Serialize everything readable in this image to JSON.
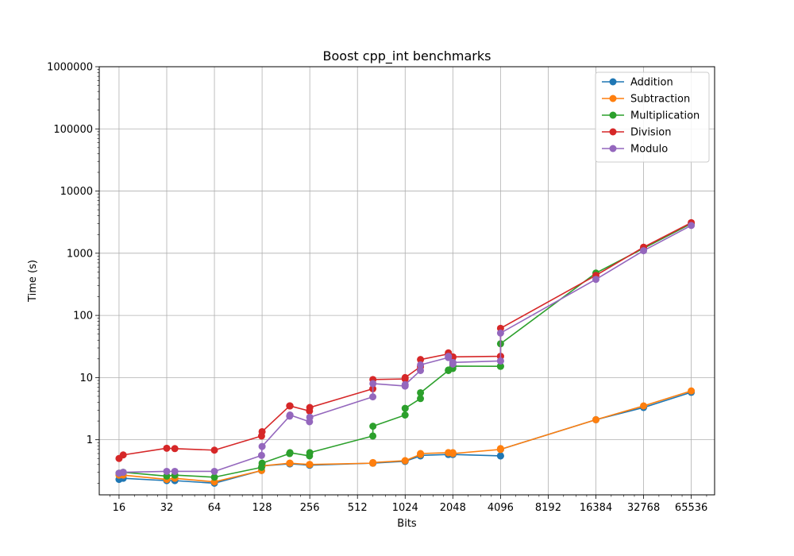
{
  "chart_data": {
    "type": "line",
    "title": "Boost cpp_int benchmarks",
    "xlabel": "Bits",
    "ylabel": "Time (s)",
    "x_scale": "log2",
    "y_scale": "log10",
    "xlim": [
      12,
      92000
    ],
    "ylim": [
      0.13,
      1000000
    ],
    "x_ticks": [
      16,
      32,
      64,
      128,
      256,
      512,
      1024,
      2048,
      4096,
      8192,
      16384,
      32768,
      65536
    ],
    "x_tick_labels": [
      "16",
      "32",
      "64",
      "128",
      "256",
      "512",
      "1024",
      "2048",
      "4096",
      "8192",
      "16384",
      "32768",
      "65536"
    ],
    "y_ticks": [
      1,
      10,
      100,
      1000,
      10000,
      100000,
      1000000
    ],
    "y_tick_labels": [
      "1",
      "10",
      "100",
      "1000",
      "10000",
      "100000",
      "1000000"
    ],
    "grid": true,
    "legend_position": "top-right",
    "x": [
      16,
      17,
      32,
      36,
      64,
      127,
      128,
      191,
      192,
      255,
      256,
      640,
      641,
      1023,
      1024,
      1279,
      1280,
      1919,
      1920,
      2047,
      2048,
      2049,
      4095,
      4096,
      4097,
      16384,
      32768,
      65536
    ],
    "series": [
      {
        "name": "Addition",
        "color": "#1f77b4",
        "x": [
          16,
          17,
          32,
          36,
          64,
          127,
          128,
          191,
          192,
          255,
          256,
          640,
          641,
          1023,
          1024,
          1279,
          1280,
          1919,
          1920,
          2047,
          2048,
          2049,
          4095,
          4096,
          4097,
          16384,
          32768,
          65536
        ],
        "values": [
          0.23,
          0.24,
          0.22,
          0.22,
          0.2,
          0.32,
          0.38,
          0.41,
          0.41,
          0.39,
          0.39,
          0.42,
          0.42,
          0.45,
          0.45,
          0.55,
          0.56,
          0.58,
          0.58,
          0.58,
          0.58,
          0.58,
          0.55,
          0.55,
          0.7,
          2.1,
          3.3,
          5.8
        ]
      },
      {
        "name": "Subtraction",
        "color": "#ff7f0e",
        "x": [
          16,
          17,
          32,
          36,
          64,
          127,
          128,
          191,
          192,
          255,
          256,
          640,
          641,
          1023,
          1024,
          1279,
          1280,
          1919,
          1920,
          2047,
          2048,
          2049,
          4095,
          4096,
          4097,
          16384,
          32768,
          65536
        ],
        "values": [
          0.27,
          0.27,
          0.23,
          0.24,
          0.21,
          0.32,
          0.38,
          0.42,
          0.42,
          0.4,
          0.4,
          0.42,
          0.43,
          0.46,
          0.46,
          0.58,
          0.6,
          0.62,
          0.62,
          0.61,
          0.62,
          0.6,
          0.7,
          0.72,
          0.7,
          2.1,
          3.5,
          6.1
        ]
      },
      {
        "name": "Multiplication",
        "color": "#2ca02c",
        "x": [
          16,
          17,
          32,
          36,
          64,
          127,
          128,
          191,
          192,
          255,
          256,
          640,
          641,
          1023,
          1024,
          1279,
          1280,
          1919,
          1920,
          2047,
          2048,
          2049,
          4095,
          4096,
          4097,
          16384,
          32768,
          65536
        ],
        "values": [
          0.29,
          0.3,
          0.26,
          0.27,
          0.25,
          0.36,
          0.42,
          0.6,
          0.62,
          0.55,
          0.62,
          1.15,
          1.65,
          2.5,
          3.2,
          4.6,
          5.7,
          13.0,
          13.2,
          14.0,
          15.3,
          15.3,
          15.2,
          15.2,
          35.0,
          480,
          1200,
          3000
        ]
      },
      {
        "name": "Division",
        "color": "#d62728",
        "x": [
          16,
          17,
          32,
          36,
          64,
          127,
          128,
          191,
          192,
          255,
          256,
          640,
          641,
          1023,
          1024,
          1279,
          1280,
          1919,
          1920,
          2047,
          2048,
          2049,
          4095,
          4096,
          4097,
          16384,
          32768,
          65536
        ],
        "values": [
          0.5,
          0.57,
          0.73,
          0.72,
          0.68,
          1.15,
          1.35,
          3.5,
          3.5,
          2.9,
          3.3,
          6.6,
          9.3,
          9.5,
          10.0,
          15.0,
          19.5,
          24.0,
          25.0,
          21.0,
          21.5,
          21.5,
          22.0,
          22.0,
          62.0,
          440,
          1250,
          3100
        ]
      },
      {
        "name": "Modulo",
        "color": "#9467bd",
        "x": [
          16,
          17,
          32,
          36,
          64,
          127,
          128,
          191,
          192,
          255,
          256,
          640,
          641,
          1023,
          1024,
          1279,
          1280,
          1919,
          1920,
          2047,
          2048,
          2049,
          4095,
          4096,
          4097,
          16384,
          32768,
          65536
        ],
        "values": [
          0.29,
          0.3,
          0.31,
          0.31,
          0.31,
          0.56,
          0.78,
          2.4,
          2.5,
          1.95,
          2.3,
          4.9,
          8.0,
          7.3,
          7.7,
          13.0,
          16.0,
          21.0,
          22.0,
          16.5,
          17.5,
          17.5,
          18.5,
          18.5,
          52.0,
          380,
          1100,
          2800
        ]
      }
    ]
  }
}
